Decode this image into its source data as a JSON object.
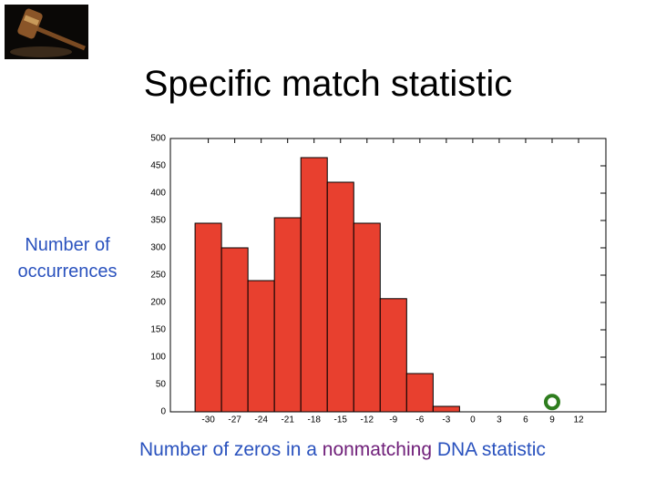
{
  "chart_data": {
    "type": "histogram",
    "title": "Specific match statistic",
    "ylabel": "Number of occurrences",
    "xlabel_parts": [
      "Number of zeros in a ",
      "nonmatching",
      " DNA statistic"
    ],
    "bins": [
      -31.5,
      -28.5,
      -25.5,
      -22.5,
      -19.5,
      -16.5,
      -13.5,
      -10.5,
      -7.5,
      -4.5,
      -1.5
    ],
    "values": [
      345,
      300,
      240,
      355,
      465,
      420,
      345,
      207,
      70,
      10
    ],
    "color": "#e8402f",
    "xlim": [
      -34.3,
      15.1
    ],
    "ylim": [
      0,
      500
    ],
    "xticks": [
      -30,
      -27,
      -24,
      -21,
      -18,
      -15,
      -12,
      -9,
      -6,
      -3,
      0,
      3,
      6,
      9,
      12
    ],
    "yticks": [
      0,
      50,
      100,
      150,
      200,
      250,
      300,
      350,
      400,
      450,
      500
    ],
    "marker": {
      "x": 9,
      "y": 18,
      "color": "#2e7d1e"
    }
  }
}
